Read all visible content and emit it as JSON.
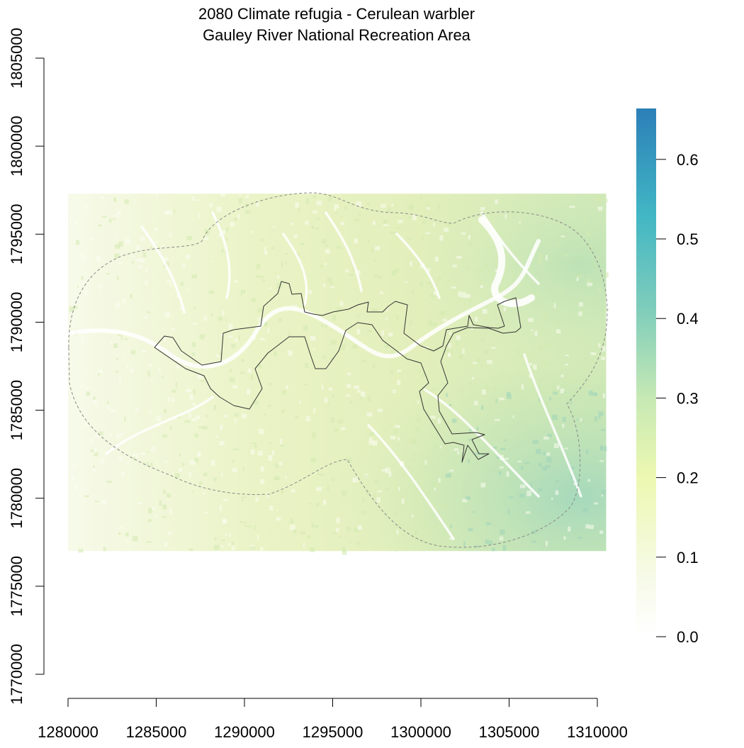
{
  "title": {
    "line1": "2080 Climate refugia - Cerulean warbler",
    "line2": "Gauley River National Recreation Area"
  },
  "colors": {
    "legend_stops": [
      "#ffffff",
      "#f4f8e4",
      "#e4f2b8",
      "#c7e8ad",
      "#7fcdbb",
      "#41b6c4",
      "#2c7fb8"
    ],
    "raster_base": "#e8f1c2",
    "raster_dark": "#b4dcb5",
    "outline": "#333333",
    "buffer": "#8a8a8a"
  },
  "map": {
    "x_axis": {
      "range": [
        1280000,
        1310000
      ],
      "ticks": [
        "1280000",
        "1285000",
        "1290000",
        "1295000",
        "1300000",
        "1305000",
        "1310000"
      ]
    },
    "y_axis": {
      "range": [
        1770000,
        1805000
      ],
      "ticks": [
        "1770000",
        "1775000",
        "1780000",
        "1785000",
        "1790000",
        "1795000",
        "1800000",
        "1805000"
      ]
    },
    "raster_extent": {
      "x": [
        1280000,
        1310500
      ],
      "y": [
        1777000,
        1797300
      ]
    },
    "legend": {
      "ticks": [
        "0.0",
        "0.1",
        "0.2",
        "0.3",
        "0.4",
        "0.5",
        "0.6"
      ],
      "range": [
        0.0,
        0.664
      ]
    },
    "layers": [
      "refugia-raster",
      "study-area-buffer",
      "park-boundary"
    ]
  }
}
